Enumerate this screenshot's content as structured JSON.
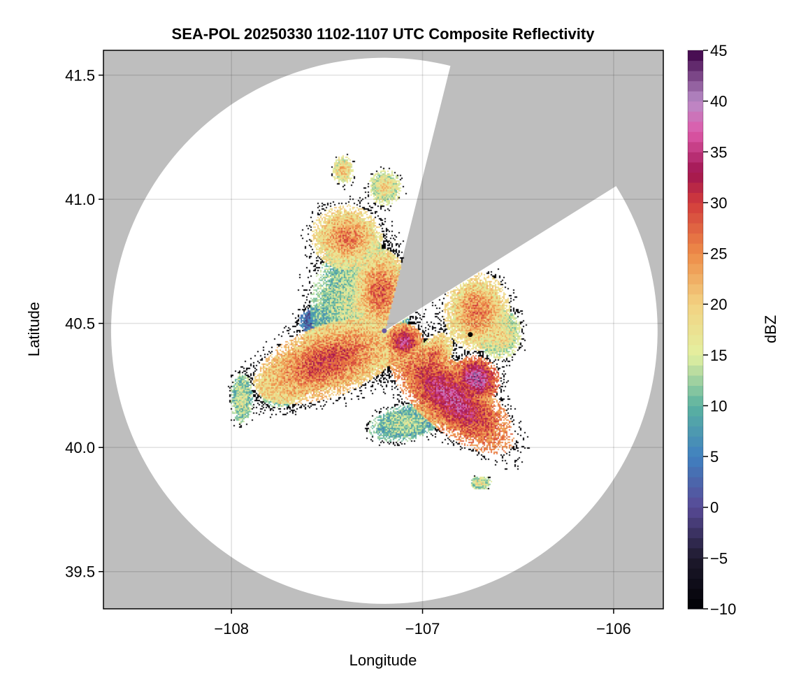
{
  "chart_data": {
    "type": "heatmap",
    "title": "SEA-POL 20250330 1102-1107 UTC Composite Reflectivity",
    "xlabel": "Longitude",
    "ylabel": "Latitude",
    "xlim": [
      -108.67,
      -105.74
    ],
    "ylim": [
      39.35,
      41.6
    ],
    "x_ticks": [
      -108,
      -107,
      -106
    ],
    "x_tick_labels": [
      "−108",
      "−107",
      "−106"
    ],
    "y_ticks": [
      39.5,
      40.0,
      40.5,
      41.0,
      41.5
    ],
    "y_tick_labels": [
      "39.5",
      "40.0",
      "40.5",
      "41.0",
      "41.5"
    ],
    "grid": true,
    "colormap": "Spectral (reversed)",
    "no_coverage_color": "#bebebe",
    "colorbar": {
      "label": "dBZ",
      "range": [
        -10,
        45
      ],
      "ticks": [
        -10,
        -5,
        0,
        5,
        10,
        15,
        20,
        25,
        30,
        35,
        40,
        45
      ],
      "tick_labels": [
        "−10",
        "−5",
        "0",
        "5",
        "10",
        "15",
        "20",
        "25",
        "30",
        "35",
        "40",
        "45"
      ],
      "levels": 55
    },
    "radar": {
      "lon": -107.2,
      "lat": 40.47,
      "range_deg_lon": 1.43,
      "range_deg_lat": 1.1,
      "blocked_sectors_deg": [
        [
          14,
          58
        ]
      ]
    },
    "markers": [
      {
        "lon": -107.2,
        "lat": 40.47,
        "color": "#6a5aa0"
      },
      {
        "lon": -106.75,
        "lat": 40.455,
        "color": "#000000"
      }
    ],
    "echo_regions": [
      {
        "lon": -107.5,
        "lat": 40.35,
        "sx": 0.28,
        "sy": 0.1,
        "rot": -20,
        "peak": 30
      },
      {
        "lon": -106.85,
        "lat": 40.2,
        "sx": 0.28,
        "sy": 0.09,
        "rot": 40,
        "peak": 36
      },
      {
        "lon": -106.72,
        "lat": 40.28,
        "sx": 0.09,
        "sy": 0.06,
        "rot": 40,
        "peak": 40
      },
      {
        "lon": -107.33,
        "lat": 40.57,
        "sx": 0.18,
        "sy": 0.18,
        "rot": 0,
        "peak": 16
      },
      {
        "lon": -107.22,
        "lat": 40.63,
        "sx": 0.1,
        "sy": 0.12,
        "rot": 0,
        "peak": 28
      },
      {
        "lon": -107.1,
        "lat": 40.43,
        "sx": 0.07,
        "sy": 0.05,
        "rot": 0,
        "peak": 36
      },
      {
        "lon": -107.4,
        "lat": 40.85,
        "sx": 0.13,
        "sy": 0.09,
        "rot": 10,
        "peak": 26
      },
      {
        "lon": -107.55,
        "lat": 40.51,
        "sx": 0.07,
        "sy": 0.04,
        "rot": 0,
        "peak": 4
      },
      {
        "lon": -107.35,
        "lat": 40.51,
        "sx": 0.05,
        "sy": 0.04,
        "rot": 0,
        "peak": 4
      },
      {
        "lon": -106.72,
        "lat": 40.55,
        "sx": 0.12,
        "sy": 0.11,
        "rot": 0,
        "peak": 26
      },
      {
        "lon": -106.6,
        "lat": 40.46,
        "sx": 0.08,
        "sy": 0.07,
        "rot": 0,
        "peak": 20
      },
      {
        "lon": -106.95,
        "lat": 40.36,
        "sx": 0.06,
        "sy": 0.08,
        "rot": 30,
        "peak": 28
      },
      {
        "lon": -107.1,
        "lat": 40.1,
        "sx": 0.13,
        "sy": 0.05,
        "rot": -10,
        "peak": 14
      },
      {
        "lon": -107.75,
        "lat": 40.25,
        "sx": 0.08,
        "sy": 0.06,
        "rot": 0,
        "peak": 18
      },
      {
        "lon": -107.95,
        "lat": 40.2,
        "sx": 0.04,
        "sy": 0.07,
        "rot": 0,
        "peak": 16
      },
      {
        "lon": -107.2,
        "lat": 41.05,
        "sx": 0.06,
        "sy": 0.05,
        "rot": 0,
        "peak": 20
      },
      {
        "lon": -107.42,
        "lat": 41.12,
        "sx": 0.04,
        "sy": 0.04,
        "rot": 0,
        "peak": 22
      },
      {
        "lon": -106.7,
        "lat": 39.86,
        "sx": 0.04,
        "sy": 0.02,
        "rot": 0,
        "peak": 18
      }
    ]
  }
}
